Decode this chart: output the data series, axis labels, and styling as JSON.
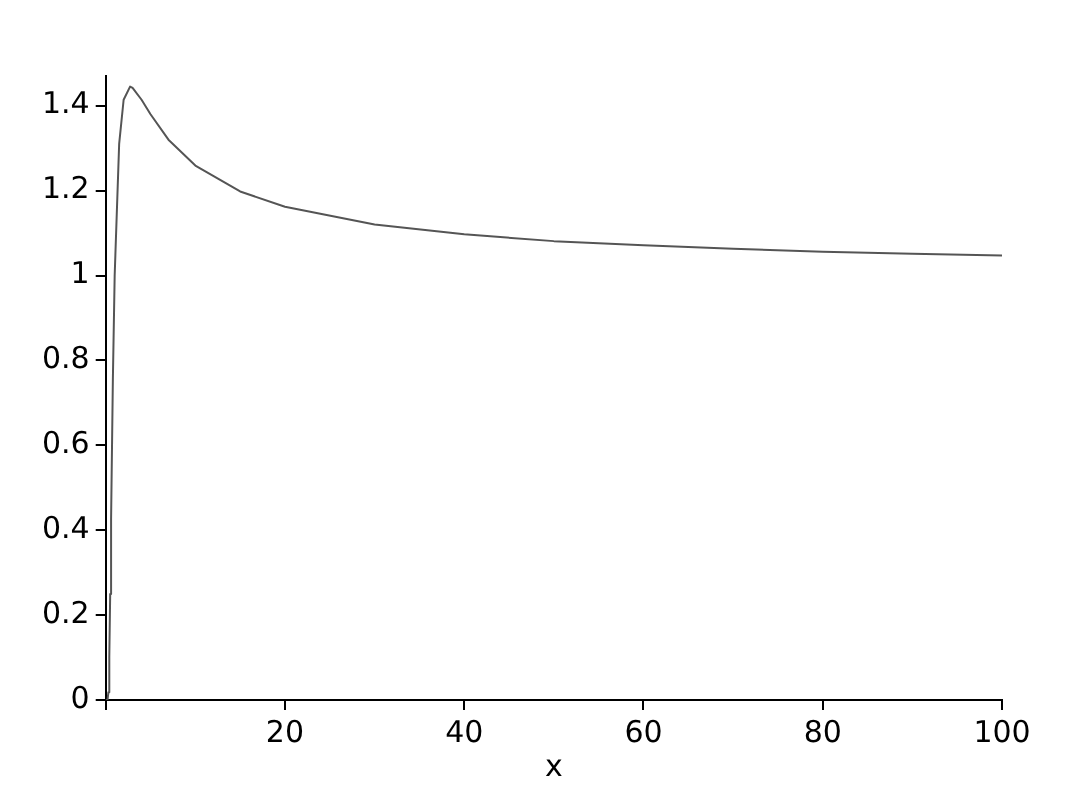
{
  "chart_data": {
    "type": "line",
    "xlabel": "x",
    "x": [
      0,
      0.2,
      0.3,
      0.4,
      0.5,
      0.6,
      0.8,
      1,
      1.5,
      2,
      2.718,
      3,
      4,
      5,
      7,
      10,
      15,
      20,
      30,
      40,
      50,
      60,
      70,
      80,
      90,
      100
    ],
    "series": [
      {
        "color": "#555555",
        "values": [
          0,
          0,
          0.018,
          0.1,
          0.25,
          0.427,
          0.757,
          1,
          1.31,
          1.414,
          1.445,
          1.442,
          1.414,
          1.38,
          1.32,
          1.259,
          1.198,
          1.162,
          1.12,
          1.097,
          1.081,
          1.071,
          1.063,
          1.056,
          1.051,
          1.047
        ]
      }
    ],
    "xlim": [
      0,
      100
    ],
    "ylim": [
      0,
      1.47
    ],
    "xticks": [
      {
        "value": 0,
        "label": null
      },
      20,
      40,
      60,
      80,
      100
    ],
    "yticks": [
      0,
      0.2,
      0.4,
      0.6,
      0.8,
      1,
      1.2,
      1.4
    ],
    "grid": false,
    "legend": false,
    "marker": "none",
    "line_style": "solid"
  }
}
